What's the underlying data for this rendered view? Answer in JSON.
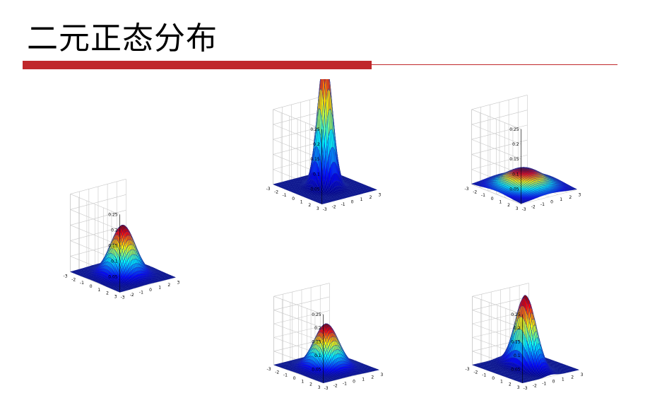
{
  "slide": {
    "title": "二元正态分布",
    "accent_color": "#c0282b"
  },
  "axis_ticks": {
    "z": [
      "0.05",
      "0.1",
      "0.15",
      "0.2",
      "0.25"
    ],
    "xy": [
      "-3",
      "-2",
      "-1",
      "0",
      "1",
      "2",
      "3"
    ]
  },
  "colormap": "jet",
  "mesh_color": "#1d2e9e",
  "chart_data": [
    {
      "type": "surface",
      "title": "",
      "x_range": [
        -3,
        3
      ],
      "y_range": [
        -3,
        3
      ],
      "zlim": [
        0,
        0.25
      ],
      "peak": 0.16,
      "grid": true
    },
    {
      "type": "surface",
      "title": "",
      "x_range": [
        -3,
        3
      ],
      "y_range": [
        -3,
        3
      ],
      "zlim": [
        0,
        0.25
      ],
      "peak": 0.25,
      "grid": true
    },
    {
      "type": "surface",
      "title": "",
      "x_range": [
        -3,
        3
      ],
      "y_range": [
        -3,
        3
      ],
      "zlim": [
        0,
        0.25
      ],
      "peak": 0.04,
      "grid": true
    },
    {
      "type": "surface",
      "title": "",
      "x_range": [
        -3,
        3
      ],
      "y_range": [
        -3,
        3
      ],
      "zlim": [
        0,
        0.25
      ],
      "peak": 0.16,
      "grid": true
    },
    {
      "type": "surface",
      "title": "",
      "x_range": [
        -3,
        3
      ],
      "y_range": [
        -3,
        3
      ],
      "zlim": [
        0,
        0.25
      ],
      "peak": 0.25,
      "grid": true
    }
  ]
}
